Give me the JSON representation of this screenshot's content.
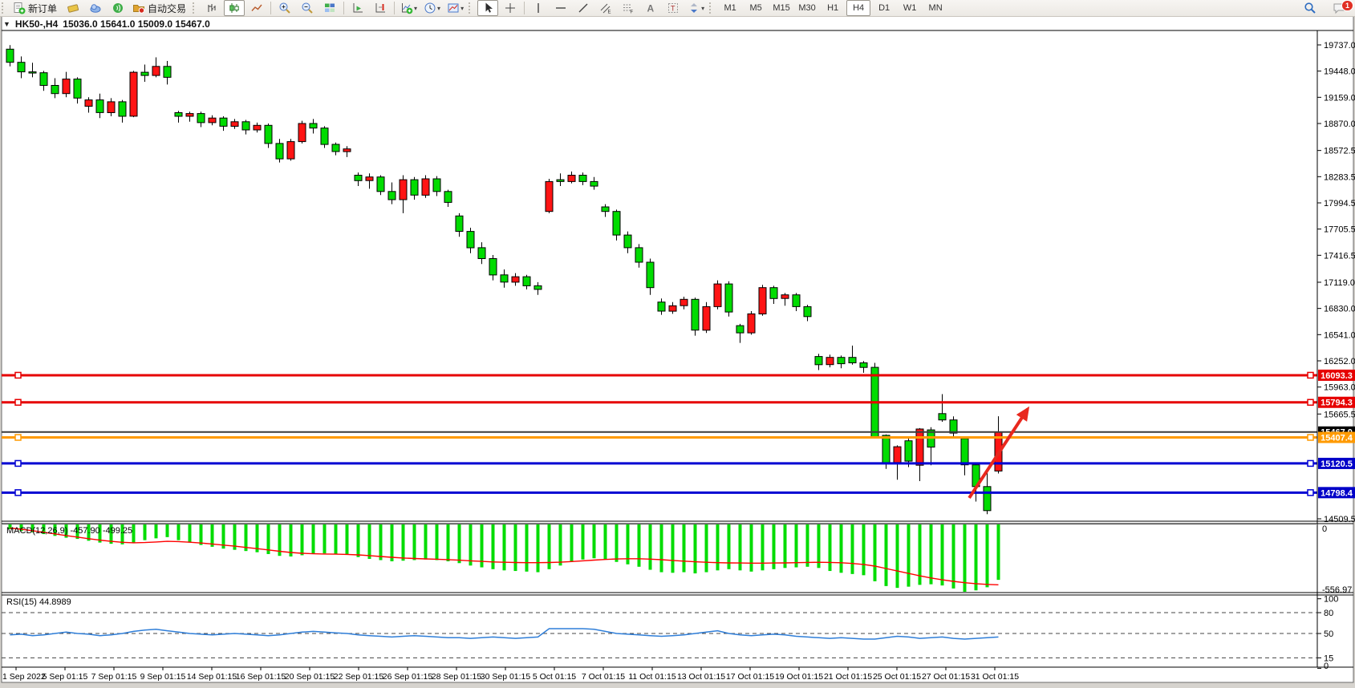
{
  "toolbar": {
    "new_order_label": "新订单",
    "auto_trading_label": "自动交易",
    "timeframes": [
      "M1",
      "M5",
      "M15",
      "M30",
      "H1",
      "H4",
      "D1",
      "W1",
      "MN"
    ],
    "active_timeframe": "H4",
    "notification_badge": "1"
  },
  "chart": {
    "symbol_period": "HK50-,H4",
    "ohlc": "15036.0 15641.0 15009.0 15467.0"
  },
  "chart_data": {
    "type": "candlestick",
    "symbol": "HK50",
    "timeframe": "H4",
    "price_axis": {
      "top": 19737.0,
      "bottom": 14509.5,
      "labels": [
        19737.0,
        19448.0,
        19159.0,
        18870.0,
        18572.5,
        18283.5,
        17994.5,
        17705.5,
        17416.5,
        17119.0,
        16830.0,
        16541.0,
        16252.0,
        15963.0,
        15665.5,
        14509.5
      ]
    },
    "candles": [
      [
        19690,
        19735,
        19500,
        19545
      ],
      [
        19545,
        19610,
        19370,
        19440
      ],
      [
        19440,
        19540,
        19380,
        19430
      ],
      [
        19430,
        19450,
        19230,
        19290
      ],
      [
        19290,
        19370,
        19150,
        19200
      ],
      [
        19200,
        19440,
        19160,
        19360
      ],
      [
        19360,
        19380,
        19090,
        19150
      ],
      [
        19060,
        19160,
        18990,
        19130
      ],
      [
        19130,
        19200,
        18930,
        18990
      ],
      [
        18990,
        19150,
        18950,
        19110
      ],
      [
        19110,
        19130,
        18880,
        18950
      ],
      [
        18950,
        19450,
        18940,
        19435
      ],
      [
        19435,
        19520,
        19330,
        19400
      ],
      [
        19400,
        19600,
        19380,
        19500
      ],
      [
        19500,
        19560,
        19300,
        19380
      ],
      [
        18990,
        19010,
        18880,
        18950
      ],
      [
        18950,
        19000,
        18890,
        18980
      ],
      [
        18980,
        19000,
        18830,
        18880
      ],
      [
        18880,
        18960,
        18850,
        18930
      ],
      [
        18930,
        18950,
        18790,
        18840
      ],
      [
        18840,
        18920,
        18810,
        18890
      ],
      [
        18890,
        18910,
        18750,
        18800
      ],
      [
        18800,
        18880,
        18770,
        18850
      ],
      [
        18850,
        18870,
        18600,
        18650
      ],
      [
        18650,
        18700,
        18440,
        18480
      ],
      [
        18480,
        18700,
        18460,
        18670
      ],
      [
        18670,
        18900,
        18650,
        18870
      ],
      [
        18870,
        18920,
        18760,
        18820
      ],
      [
        18820,
        18840,
        18600,
        18640
      ],
      [
        18640,
        18660,
        18520,
        18560
      ],
      [
        18560,
        18620,
        18500,
        18590
      ],
      [
        18300,
        18330,
        18180,
        18240
      ],
      [
        18240,
        18320,
        18150,
        18280
      ],
      [
        18280,
        18300,
        18080,
        18120
      ],
      [
        18120,
        18220,
        17980,
        18030
      ],
      [
        18030,
        18300,
        17880,
        18250
      ],
      [
        18250,
        18280,
        18030,
        18080
      ],
      [
        18080,
        18300,
        18050,
        18260
      ],
      [
        18260,
        18290,
        18070,
        18120
      ],
      [
        18120,
        18140,
        17950,
        18000
      ],
      [
        17850,
        17880,
        17620,
        17680
      ],
      [
        17680,
        17720,
        17440,
        17500
      ],
      [
        17500,
        17560,
        17320,
        17380
      ],
      [
        17380,
        17420,
        17140,
        17200
      ],
      [
        17200,
        17260,
        17060,
        17120
      ],
      [
        17120,
        17220,
        17080,
        17180
      ],
      [
        17180,
        17200,
        17040,
        17080
      ],
      [
        17080,
        17120,
        16980,
        17040
      ],
      [
        17900,
        18260,
        17880,
        18230
      ],
      [
        18250,
        18320,
        18180,
        18230
      ],
      [
        18230,
        18340,
        18210,
        18300
      ],
      [
        18300,
        18330,
        18190,
        18230
      ],
      [
        18230,
        18280,
        18140,
        18180
      ],
      [
        17950,
        17980,
        17840,
        17900
      ],
      [
        17900,
        17920,
        17580,
        17640
      ],
      [
        17640,
        17680,
        17440,
        17500
      ],
      [
        17500,
        17540,
        17280,
        17340
      ],
      [
        17340,
        17380,
        16980,
        17060
      ],
      [
        16900,
        16940,
        16760,
        16800
      ],
      [
        16800,
        16900,
        16770,
        16860
      ],
      [
        16860,
        16960,
        16820,
        16930
      ],
      [
        16930,
        16950,
        16530,
        16590
      ],
      [
        16590,
        16900,
        16560,
        16850
      ],
      [
        16850,
        17140,
        16820,
        17100
      ],
      [
        17100,
        17130,
        16740,
        16790
      ],
      [
        16640,
        16660,
        16450,
        16560
      ],
      [
        16560,
        16800,
        16540,
        16770
      ],
      [
        16770,
        17090,
        16750,
        17060
      ],
      [
        17060,
        17080,
        16880,
        16940
      ],
      [
        16940,
        17000,
        16860,
        16980
      ],
      [
        16980,
        17000,
        16800,
        16850
      ],
      [
        16850,
        16870,
        16690,
        16740
      ],
      [
        16300,
        16330,
        16150,
        16210
      ],
      [
        16210,
        16320,
        16180,
        16290
      ],
      [
        16290,
        16310,
        16170,
        16220
      ],
      [
        16290,
        16420,
        16210,
        16230
      ],
      [
        16230,
        16250,
        16120,
        16180
      ],
      [
        16180,
        16230,
        15395,
        15403
      ],
      [
        15430,
        15440,
        15060,
        15120
      ],
      [
        15130,
        15320,
        14940,
        15305
      ],
      [
        15370,
        15395,
        15080,
        15145
      ],
      [
        15100,
        15510,
        14925,
        15500
      ],
      [
        15490,
        15520,
        15100,
        15300
      ],
      [
        15670,
        15885,
        15580,
        15600
      ],
      [
        15600,
        15640,
        15420,
        15455
      ],
      [
        15395,
        15400,
        14990,
        15105
      ],
      [
        15105,
        15130,
        14700,
        14865
      ],
      [
        14865,
        15030,
        14560,
        14600
      ],
      [
        15036,
        15641,
        15009,
        15467
      ]
    ],
    "hlines": [
      {
        "price": 16093.3,
        "color": "#e60000",
        "width": 3,
        "handles": true,
        "box_color": "#e60000"
      },
      {
        "price": 15794.3,
        "color": "#e60000",
        "width": 3,
        "handles": true,
        "box_color": "#e60000"
      },
      {
        "price": 15467.0,
        "color": "#3c3c3c",
        "width": 2,
        "handles": false,
        "box_color": "#000000"
      },
      {
        "price": 15407.4,
        "color": "#ff9a00",
        "width": 3,
        "handles": true,
        "box_color": "#ff9a00"
      },
      {
        "price": 15120.5,
        "color": "#0000d2",
        "width": 3,
        "handles": true,
        "box_color": "#0000c8"
      },
      {
        "price": 14798.4,
        "color": "#0000d2",
        "width": 3,
        "handles": true,
        "box_color": "#0000c8"
      }
    ],
    "arrow": {
      "from_bar": 85.4,
      "from_price": 14740,
      "to_bar": 90.6,
      "to_price": 15720,
      "color": "#e8281e"
    },
    "time_axis": {
      "labels": [
        "1 Sep 2022",
        "5 Sep 01:15",
        "7 Sep 01:15",
        "9 Sep 01:15",
        "14 Sep 01:15",
        "16 Sep 01:15",
        "20 Sep 01:15",
        "22 Sep 01:15",
        "26 Sep 01:15",
        "28 Sep 01:15",
        "30 Sep 01:15",
        "5 Oct 01:15",
        "7 Oct 01:15",
        "11 Oct 01:15",
        "13 Oct 01:15",
        "17 Oct 01:15",
        "19 Oct 01:15",
        "21 Oct 01:15",
        "25 Oct 01:15",
        "27 Oct 01:15",
        "31 Oct 01:15"
      ]
    },
    "macd": {
      "label": "MACD(12,26,9) -457.90 -499.25",
      "value": -457.9,
      "signal_value": -499.25,
      "axis_max": 0,
      "axis_min": -556.97,
      "axis_max_label": "0",
      "axis_min_label": "-556.97",
      "histogram": [
        -40,
        -55,
        -65,
        -80,
        -95,
        -110,
        -120,
        -135,
        -150,
        -160,
        -165,
        -150,
        -130,
        -115,
        -105,
        -130,
        -150,
        -170,
        -185,
        -200,
        -210,
        -220,
        -230,
        -245,
        -260,
        -265,
        -255,
        -245,
        -240,
        -245,
        -250,
        -270,
        -285,
        -295,
        -305,
        -300,
        -295,
        -290,
        -295,
        -305,
        -320,
        -340,
        -355,
        -370,
        -380,
        -385,
        -390,
        -395,
        -370,
        -340,
        -310,
        -290,
        -280,
        -290,
        -310,
        -330,
        -350,
        -375,
        -395,
        -400,
        -395,
        -405,
        -395,
        -380,
        -370,
        -380,
        -390,
        -380,
        -370,
        -360,
        -355,
        -350,
        -360,
        -385,
        -400,
        -410,
        -420,
        -470,
        -510,
        -525,
        -515,
        -500,
        -495,
        -505,
        -530,
        -557,
        -545,
        -520,
        -458
      ],
      "signal": [
        -30,
        -40,
        -52,
        -65,
        -78,
        -92,
        -105,
        -118,
        -130,
        -140,
        -148,
        -152,
        -150,
        -145,
        -140,
        -142,
        -147,
        -154,
        -162,
        -171,
        -180,
        -190,
        -200,
        -211,
        -222,
        -232,
        -239,
        -243,
        -245,
        -246,
        -248,
        -252,
        -258,
        -265,
        -272,
        -278,
        -282,
        -285,
        -288,
        -291,
        -296,
        -301,
        -306,
        -310,
        -313,
        -315,
        -316,
        -316,
        -315,
        -312,
        -307,
        -301,
        -295,
        -290,
        -286,
        -284,
        -284,
        -287,
        -292,
        -298,
        -304,
        -309,
        -313,
        -316,
        -318,
        -319,
        -320,
        -320,
        -319,
        -318,
        -316,
        -314,
        -313,
        -314,
        -317,
        -323,
        -331,
        -345,
        -365,
        -385,
        -405,
        -425,
        -443,
        -458,
        -471,
        -482,
        -490,
        -496,
        -499.25
      ]
    },
    "rsi": {
      "label": "RSI(15) 44.8989",
      "value": 44.8989,
      "levels": [
        100,
        80,
        50,
        15,
        0
      ],
      "dashed_levels": [
        80,
        50,
        15
      ],
      "values": [
        48,
        49,
        47,
        48,
        50,
        52,
        50,
        49,
        47,
        48,
        50,
        53,
        55,
        56,
        54,
        52,
        50,
        49,
        48,
        49,
        50,
        49,
        48,
        47,
        48,
        50,
        52,
        53,
        52,
        51,
        50,
        48,
        47,
        46,
        45,
        46,
        47,
        46,
        45,
        44,
        44,
        43,
        44,
        45,
        44,
        43,
        44,
        45,
        57,
        57,
        57,
        57,
        56,
        53,
        50,
        49,
        48,
        47,
        46,
        47,
        48,
        50,
        52,
        54,
        50,
        48,
        47,
        48,
        49,
        48,
        46,
        45,
        44,
        43,
        44,
        43,
        42,
        42,
        44,
        46,
        45,
        43,
        44,
        45,
        43,
        42,
        43,
        44,
        45
      ]
    }
  }
}
